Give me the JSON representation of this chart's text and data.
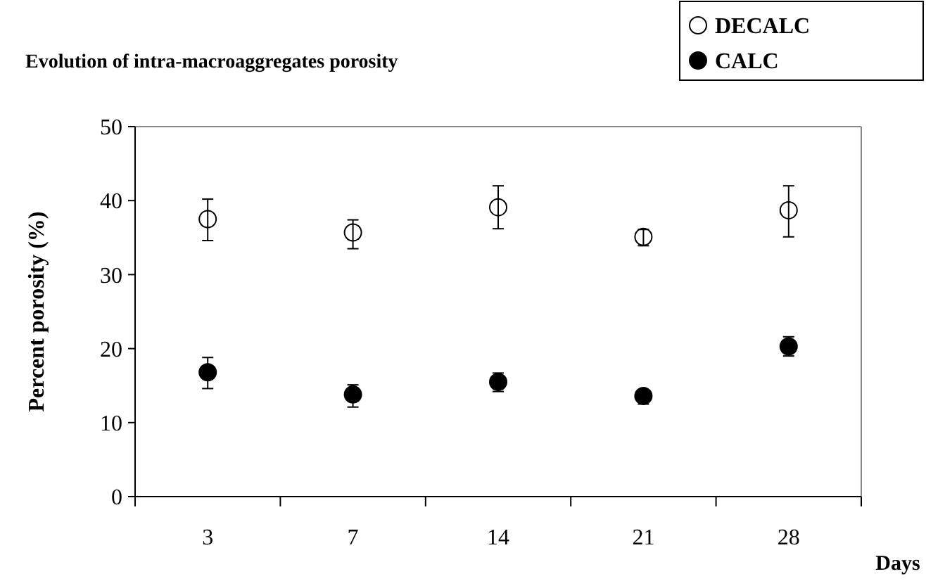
{
  "chart_data": {
    "type": "scatter",
    "title": "Evolution of intra-macroaggregates porosity",
    "xlabel": "Days",
    "ylabel": "Percent porosity (%)",
    "categories": [
      "3",
      "7",
      "14",
      "21",
      "28"
    ],
    "ylim": [
      0,
      50
    ],
    "yticks": [
      0,
      10,
      20,
      30,
      40,
      50
    ],
    "grid": false,
    "legend": "top right",
    "marker": "circle",
    "series": [
      {
        "name": "DECALC",
        "color": "#ffffff",
        "values": [
          37.5,
          35.7,
          39.1,
          35.1,
          38.7
        ],
        "errors": [
          [
            34.6,
            40.2
          ],
          [
            33.5,
            37.4
          ],
          [
            36.2,
            42.0
          ],
          [
            33.9,
            36.1
          ],
          [
            35.1,
            42.0
          ]
        ]
      },
      {
        "name": "CALC",
        "color": "#000000",
        "values": [
          16.8,
          13.8,
          15.5,
          13.6,
          20.3
        ],
        "errors": [
          [
            14.6,
            18.8
          ],
          [
            12.1,
            15.1
          ],
          [
            14.2,
            16.7
          ],
          [
            12.5,
            14.4
          ],
          [
            19.0,
            21.6
          ]
        ]
      }
    ]
  }
}
